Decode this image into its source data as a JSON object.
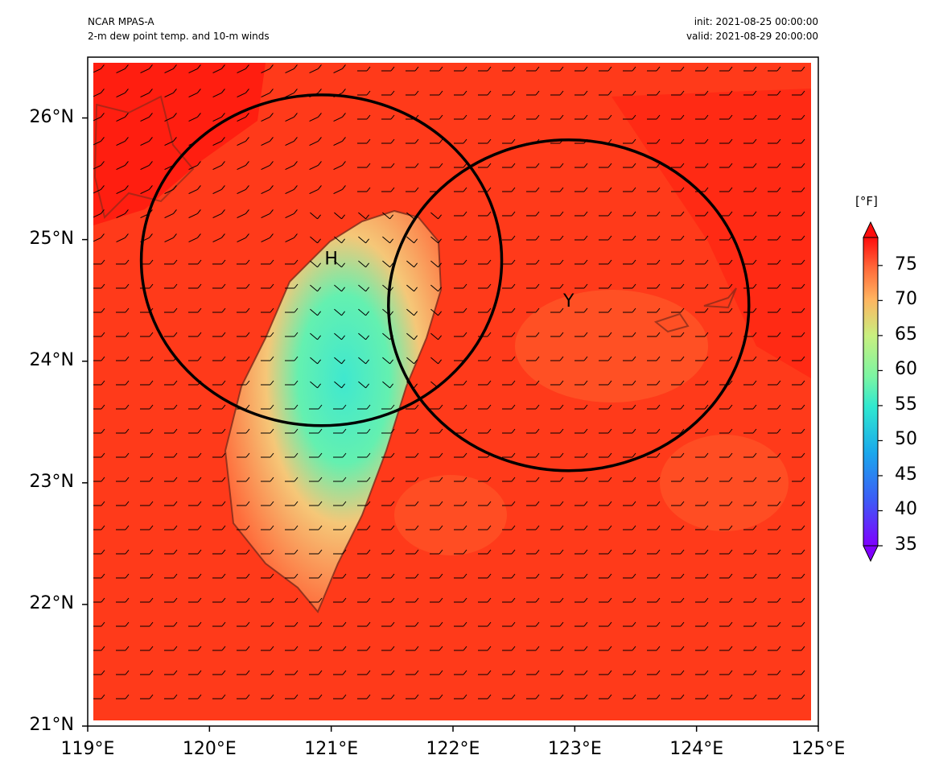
{
  "header": {
    "model": "NCAR MPAS-A",
    "field": "2-m dew point temp. and 10-m winds",
    "init": "init: 2021-08-25 00:00:00",
    "valid": "valid: 2021-08-29 20:00:00"
  },
  "map": {
    "lon_range": [
      119,
      125
    ],
    "lat_range": [
      21,
      26.5
    ],
    "lat_ticks": [
      {
        "value": 26,
        "label": "26°N"
      },
      {
        "value": 25,
        "label": "25°N"
      },
      {
        "value": 24,
        "label": "24°N"
      },
      {
        "value": 23,
        "label": "23°N"
      },
      {
        "value": 22,
        "label": "22°N"
      },
      {
        "value": 21,
        "label": "21°N"
      }
    ],
    "lon_ticks": [
      {
        "value": 119,
        "label": "119°E"
      },
      {
        "value": 120,
        "label": "120°E"
      },
      {
        "value": 121,
        "label": "121°E"
      },
      {
        "value": 122,
        "label": "122°E"
      },
      {
        "value": 123,
        "label": "123°E"
      },
      {
        "value": 124,
        "label": "124°E"
      },
      {
        "value": 125,
        "label": "125°E"
      }
    ],
    "markers": [
      {
        "label": "H",
        "lon": 121.0,
        "lat": 24.85
      },
      {
        "label": "Y",
        "lon": 122.95,
        "lat": 24.5
      }
    ],
    "circles": [
      {
        "center_lon": 120.92,
        "center_lat": 24.83,
        "radius_lon": 1.48,
        "radius_lat": 1.36
      },
      {
        "center_lon": 122.95,
        "center_lat": 24.46,
        "radius_lon": 1.48,
        "radius_lat": 1.36
      }
    ],
    "colors": {
      "background_field": "#ff3a1a",
      "land_low": "#4de8c8",
      "coast": "#7a2a1a"
    }
  },
  "colorbar": {
    "unit": "[°F]",
    "min": 35,
    "max": 79,
    "ticks": [
      "75",
      "70",
      "65",
      "60",
      "55",
      "50",
      "45",
      "40",
      "35"
    ]
  }
}
